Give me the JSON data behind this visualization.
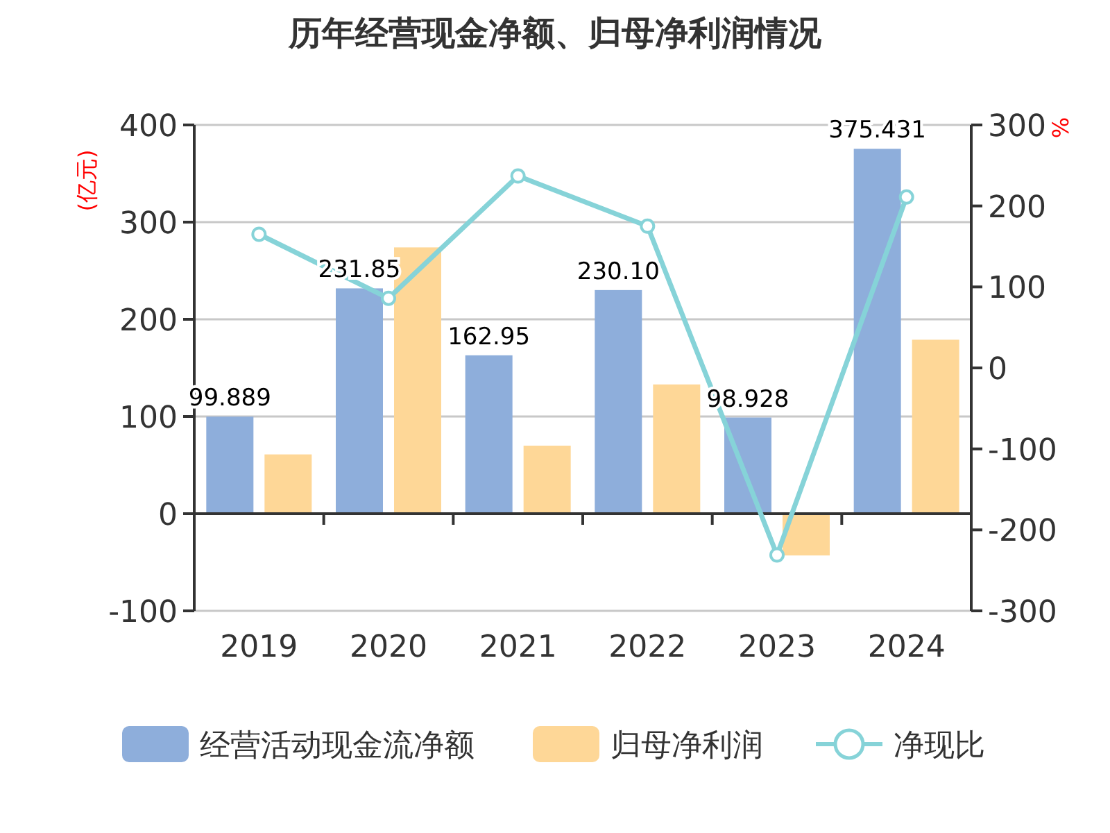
{
  "chart_data": {
    "type": "bar",
    "title": "历年经营现金净额、归母净利润情况",
    "ylabel": "(亿元)",
    "y2label": "%",
    "categories": [
      "2019",
      "2020",
      "2021",
      "2022",
      "2023",
      "2024"
    ],
    "series": [
      {
        "name": "经营活动现金流净额",
        "color": "#8eaedb",
        "values": [
          99.889,
          231.85,
          162.95,
          230.1,
          98.928,
          375.431
        ],
        "value_labels": [
          "99.889",
          "231.85",
          "162.95",
          "230.10",
          "98.928",
          "375.431"
        ]
      },
      {
        "name": "归母净利润",
        "color": "#fed797",
        "values": [
          61,
          274,
          70,
          133,
          -43,
          179
        ]
      },
      {
        "name": "净现比",
        "type": "line",
        "axis": "y2",
        "color": "#86d3d8",
        "marker": "circle",
        "values": [
          165,
          86,
          237,
          175,
          -231,
          211
        ]
      }
    ],
    "ylim": [
      -100,
      400
    ],
    "yticks": [
      -100,
      0,
      100,
      200,
      300,
      400
    ],
    "y2lim": [
      -300,
      300
    ],
    "y2ticks": [
      -300,
      -200,
      -100,
      0,
      100,
      200,
      300
    ],
    "grid": "y",
    "legend": "bottom"
  }
}
